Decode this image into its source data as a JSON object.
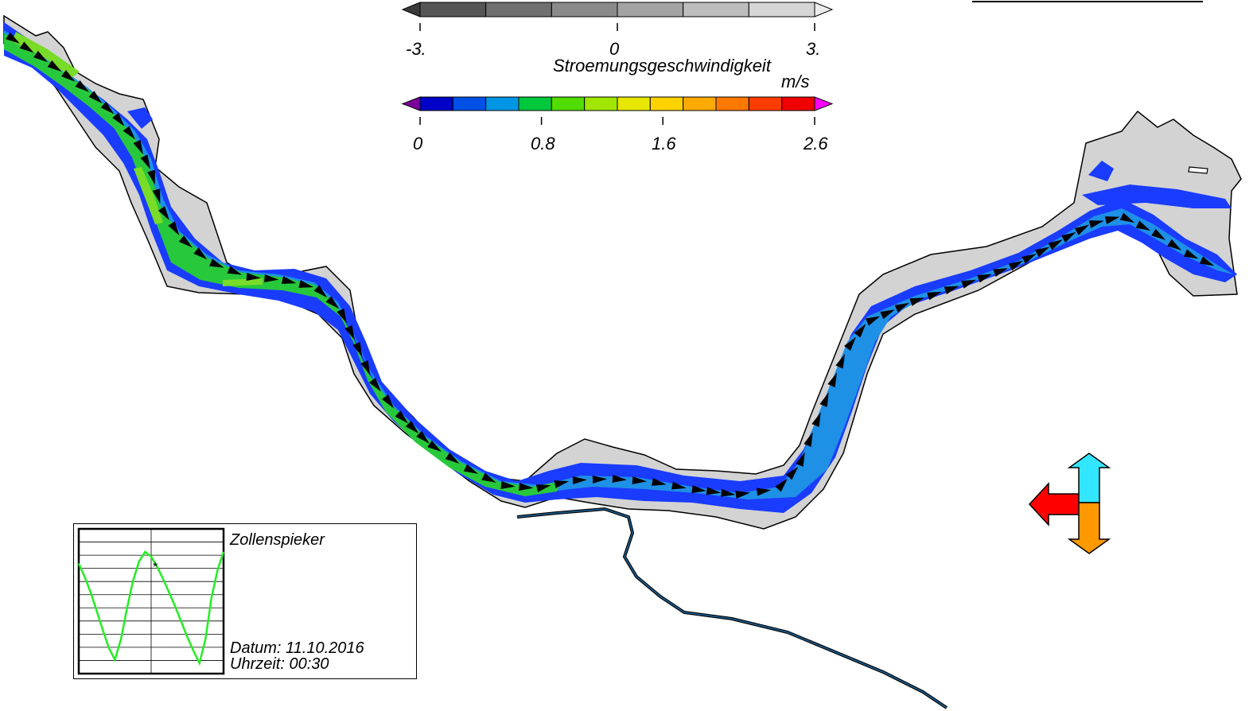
{
  "top_legend": {
    "ticks": [
      "-3.",
      "0",
      "3."
    ],
    "min": -3,
    "max": 3,
    "segments": 6,
    "colors": [
      "#555555",
      "#707070",
      "#8a8a8a",
      "#a3a3a3",
      "#bdbdbd",
      "#d6d6d6"
    ],
    "left_arrow_color": "#3a3a3a",
    "right_arrow_color": "#ececec"
  },
  "velocity_legend": {
    "title": "Stroemungsgeschwindigkeit",
    "unit": "m/s",
    "ticks": [
      "0",
      "0.8",
      "1.6",
      "2.6"
    ],
    "min": 0,
    "max": 2.6,
    "colors": [
      "#0000c8",
      "#0050e6",
      "#0096e6",
      "#00c83c",
      "#50dc00",
      "#a0e600",
      "#e6e600",
      "#ffd200",
      "#ffaa00",
      "#ff7800",
      "#ff3c00",
      "#f00000"
    ],
    "under_color": "#7a009a",
    "over_color": "#ff00ff"
  },
  "map_colors": {
    "land": "#d3d3d3",
    "shallow": "#1a3cff",
    "channel": "#1e90e6",
    "fast": "#28c83c",
    "faster": "#78dc28",
    "outline": "#000000",
    "tributary": "#1a5a8c"
  },
  "inset": {
    "station": "Zollenspieker",
    "date_label": "Datum: 11.10.2016",
    "time_label": "Uhrzeit: 00:30",
    "marker": "*",
    "line_color": "#22ee22",
    "series": [
      0.55,
      0.35,
      0.12,
      -0.15,
      -0.42,
      -0.68,
      -0.85,
      -0.55,
      -0.1,
      0.3,
      0.58,
      0.72,
      0.65,
      0.5,
      0.32,
      0.12,
      -0.08,
      -0.3,
      -0.52,
      -0.72,
      -0.9,
      -0.55,
      0.05,
      0.45,
      0.72
    ],
    "current_index": 12
  },
  "compass": {
    "west_color": "#ff0000",
    "north_color": "#33e6ff",
    "south_color": "#ff9900"
  }
}
